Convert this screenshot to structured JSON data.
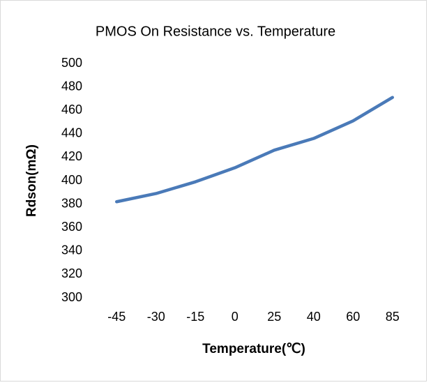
{
  "chart_data": {
    "type": "line",
    "title": "PMOS On Resistance vs. Temperature",
    "x_label": "Temperature(℃)",
    "y_label": "Rdson(mΩ)",
    "categories": [
      "-45",
      "-30",
      "-15",
      "0",
      "25",
      "40",
      "60",
      "85"
    ],
    "series": [
      {
        "name": "Rdson",
        "color": "#4a7ab8",
        "values": [
          382,
          389,
          399,
          411,
          426,
          436,
          451,
          471
        ]
      }
    ],
    "ylim": [
      300,
      500
    ],
    "yticks": [
      300,
      320,
      340,
      360,
      380,
      400,
      420,
      440,
      460,
      480,
      500
    ],
    "grid": false
  }
}
